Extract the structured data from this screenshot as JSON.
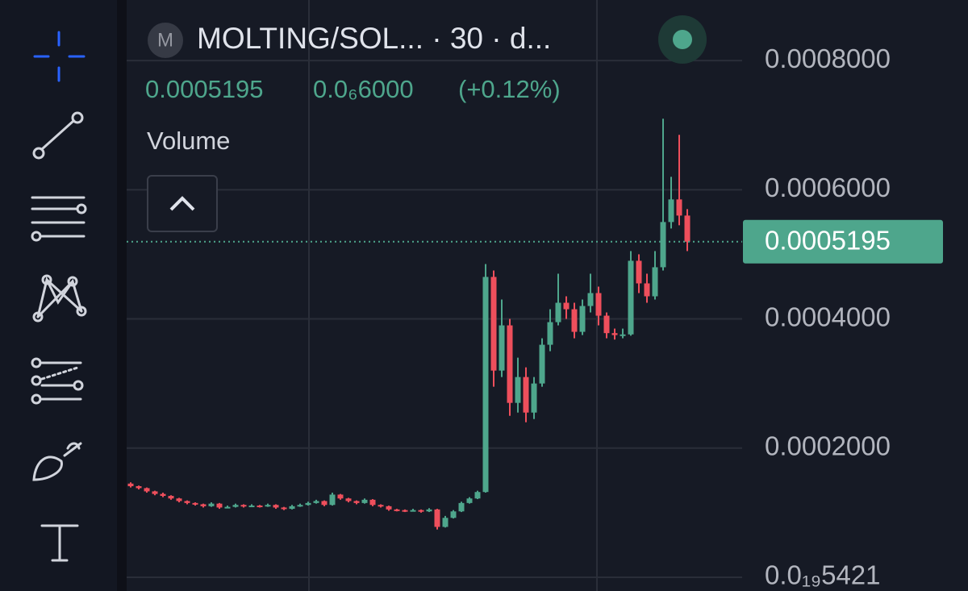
{
  "header": {
    "symbol_icon": "M",
    "title": "MOLTING/SOL... · 30 · d...",
    "price": "0.0005195",
    "change": "0.0₆6000",
    "change_pct": "(+0.12%)",
    "indicator": "Volume"
  },
  "chart_data": {
    "type": "candlestick",
    "up_color": "#4ea68c",
    "down_color": "#ee4f5c",
    "grid": true,
    "ylim": [
      -2.125e-05,
      0.00089375
    ],
    "yticks": [
      {
        "value": 0.0008,
        "label": "0.0008000"
      },
      {
        "value": 0.0006,
        "label": "0.0006000"
      },
      {
        "value": 0.0004,
        "label": "0.0004000"
      },
      {
        "value": 0.0002,
        "label": "0.0002000"
      },
      {
        "value": 5.421e-23,
        "label": "0.0₁₉5421"
      }
    ],
    "last_price": 0.0005195,
    "ohlc": [
      [
        0.000145,
        0.000147,
        0.000139,
        0.000141
      ],
      [
        0.000141,
        0.000142,
        0.000136,
        0.000138
      ],
      [
        0.000138,
        0.000139,
        0.000131,
        0.000133
      ],
      [
        0.000133,
        0.000134,
        0.000127,
        0.000129
      ],
      [
        0.000129,
        0.000131,
        0.000124,
        0.000126
      ],
      [
        0.000126,
        0.000127,
        0.00012,
        0.000122
      ],
      [
        0.000122,
        0.000123,
        0.000116,
        0.000118
      ],
      [
        0.000118,
        0.000119,
        0.000113,
        0.000115
      ],
      [
        0.000115,
        0.000116,
        0.000111,
        0.000113
      ],
      [
        0.000113,
        0.000114,
        0.000108,
        0.00011
      ],
      [
        0.00011,
        0.000116,
        0.000109,
        0.000114
      ],
      [
        0.000114,
        0.000115,
        0.000106,
        0.000108
      ],
      [
        0.000108,
        0.000111,
        0.000107,
        0.000109
      ],
      [
        0.000109,
        0.000114,
        0.000108,
        0.000112
      ],
      [
        0.000112,
        0.000113,
        0.000108,
        0.00011
      ],
      [
        0.00011,
        0.000113,
        0.000109,
        0.000111
      ],
      [
        0.000111,
        0.000112,
        0.000108,
        0.00011
      ],
      [
        0.00011,
        0.000114,
        0.000109,
        0.000112
      ],
      [
        0.000112,
        0.000113,
        0.000106,
        0.000108
      ],
      [
        0.000108,
        0.000109,
        0.000104,
        0.000106
      ],
      [
        0.000106,
        0.000112,
        0.000105,
        0.00011
      ],
      [
        0.00011,
        0.000114,
        0.000109,
        0.000112
      ],
      [
        0.000112,
        0.000117,
        0.000111,
        0.000115
      ],
      [
        0.000115,
        0.00012,
        0.000114,
        0.000118
      ],
      [
        0.000118,
        0.000119,
        0.00011,
        0.000112
      ],
      [
        0.000112,
        0.000131,
        0.000111,
        0.000128
      ],
      [
        0.000128,
        0.000129,
        0.00012,
        0.000122
      ],
      [
        0.000122,
        0.000123,
        0.000116,
        0.000118
      ],
      [
        0.000118,
        0.000119,
        0.000113,
        0.000115
      ],
      [
        0.000115,
        0.000122,
        0.000114,
        0.00012
      ],
      [
        0.00012,
        0.000121,
        0.00011,
        0.000112
      ],
      [
        0.000112,
        0.000113,
        0.000108,
        0.00011
      ],
      [
        0.00011,
        0.000111,
        0.000103,
        0.000105
      ],
      [
        0.000105,
        0.000106,
        0.000102,
        0.000104
      ],
      [
        0.000104,
        0.000105,
        0.000101,
        0.000103
      ],
      [
        0.000103,
        0.000106,
        0.000102,
        0.000104
      ],
      [
        0.000104,
        0.000105,
        0.0001,
        0.000102
      ],
      [
        0.000102,
        0.000107,
        0.000101,
        0.000105
      ],
      [
        0.000105,
        0.000106,
        7.4e-05,
        7.8e-05
      ],
      [
        7.8e-05,
        9.5e-05,
        7.7e-05,
        9.2e-05
      ],
      [
        9.2e-05,
        0.000104,
        9.1e-05,
        0.000102
      ],
      [
        0.000102,
        0.000117,
        0.000101,
        0.000115
      ],
      [
        0.000115,
        0.000124,
        0.000114,
        0.000122
      ],
      [
        0.000122,
        0.000134,
        0.000121,
        0.000132
      ],
      [
        0.000132,
        0.000485,
        0.000131,
        0.000465
      ],
      [
        0.000465,
        0.000475,
        0.000295,
        0.00032
      ],
      [
        0.00032,
        0.00043,
        0.00031,
        0.00039
      ],
      [
        0.00039,
        0.0004,
        0.00025,
        0.00027
      ],
      [
        0.00027,
        0.00034,
        0.000255,
        0.00031
      ],
      [
        0.00031,
        0.000325,
        0.00024,
        0.000255
      ],
      [
        0.000255,
        0.00031,
        0.000245,
        0.0003
      ],
      [
        0.0003,
        0.00037,
        0.000295,
        0.00036
      ],
      [
        0.00036,
        0.000415,
        0.00035,
        0.000395
      ],
      [
        0.000395,
        0.00047,
        0.00039,
        0.000425
      ],
      [
        0.000425,
        0.000435,
        0.0004,
        0.000415
      ],
      [
        0.000415,
        0.000425,
        0.00037,
        0.00038
      ],
      [
        0.00038,
        0.00043,
        0.000375,
        0.00042
      ],
      [
        0.00042,
        0.00047,
        0.00041,
        0.00044
      ],
      [
        0.00044,
        0.00045,
        0.00039,
        0.000405
      ],
      [
        0.000405,
        0.00041,
        0.00037,
        0.000378
      ],
      [
        0.000378,
        0.000385,
        0.000368,
        0.000375
      ],
      [
        0.000375,
        0.000385,
        0.00037,
        0.000376
      ],
      [
        0.000376,
        0.000505,
        0.000374,
        0.00049
      ],
      [
        0.00049,
        0.0005,
        0.00044,
        0.000455
      ],
      [
        0.000455,
        0.00047,
        0.000425,
        0.000435
      ],
      [
        0.000435,
        0.000505,
        0.00043,
        0.00048
      ],
      [
        0.00048,
        0.00071,
        0.000475,
        0.00055
      ],
      [
        0.00055,
        0.00062,
        0.00054,
        0.000585
      ],
      [
        0.000585,
        0.000685,
        0.000545,
        0.00056
      ],
      [
        0.00056,
        0.00057,
        0.000505,
        0.0005195
      ]
    ]
  }
}
